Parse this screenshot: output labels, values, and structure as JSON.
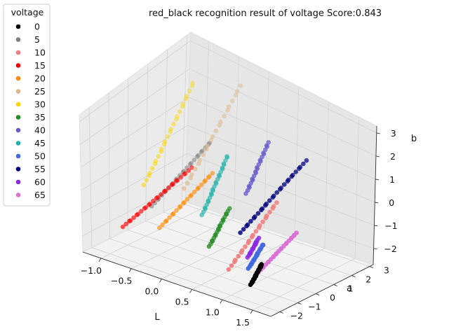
{
  "chart_data": {
    "type": "scatter",
    "projection": "3d",
    "title": "red_black recognition result of voltage Score:0.843",
    "xlabel": "L",
    "ylabel": "a",
    "zlabel": "b",
    "x_ticks": [
      "−1.0",
      "−0.5",
      "0.0",
      "0.5",
      "1.0",
      "1.5"
    ],
    "y_ticks": [
      "−2",
      "−1",
      "0",
      "1",
      "2",
      "3"
    ],
    "z_ticks": [
      "−2",
      "−1",
      "0",
      "1",
      "2",
      "3"
    ],
    "xlim": [
      -1.3,
      1.8
    ],
    "ylim": [
      -2.5,
      3.2
    ],
    "zlim": [
      -2.7,
      3.3
    ],
    "grid": true,
    "legend": {
      "title": "voltage",
      "placement": "upper-left outside",
      "entries": [
        "0",
        "5",
        "10",
        "15",
        "20",
        "25",
        "30",
        "35",
        "40",
        "45",
        "50",
        "55",
        "60",
        "65"
      ]
    },
    "series": [
      {
        "name": "0",
        "color": "#000000",
        "start": [
          1.2,
          -1.55,
          -2.2
        ],
        "end": [
          1.28,
          -1.25,
          -1.4
        ],
        "n": 24
      },
      {
        "name": "5",
        "color": "#808080",
        "start": [
          -0.95,
          0.2,
          -1.5
        ],
        "end": [
          -0.5,
          1.8,
          0.7
        ],
        "n": 26
      },
      {
        "name": "10",
        "color": "#f08080",
        "start": [
          0.78,
          -1.35,
          -2.0
        ],
        "end": [
          1.02,
          0.4,
          0.3
        ],
        "n": 22
      },
      {
        "name": "15",
        "color": "#ff0000",
        "start": [
          -1.08,
          -0.95,
          -2.0
        ],
        "end": [
          -0.55,
          0.95,
          0.0
        ],
        "n": 28
      },
      {
        "name": "20",
        "color": "#ff8c00",
        "start": [
          -0.7,
          -0.2,
          -2.0
        ],
        "end": [
          -0.3,
          1.3,
          -0.1
        ],
        "n": 24
      },
      {
        "name": "25",
        "color": "#deb887",
        "start": [
          -0.45,
          0.3,
          -0.4
        ],
        "end": [
          -0.4,
          3.0,
          2.4
        ],
        "n": 22
      },
      {
        "name": "30",
        "color": "#ffd700",
        "start": [
          -1.05,
          0.1,
          -0.7
        ],
        "end": [
          -0.95,
          2.3,
          2.3
        ],
        "n": 26
      },
      {
        "name": "35",
        "color": "#228b22",
        "start": [
          0.1,
          -0.15,
          -2.1
        ],
        "end": [
          0.15,
          0.7,
          -0.9
        ],
        "n": 20
      },
      {
        "name": "40",
        "color": "#6a5acd",
        "start": [
          0.55,
          0.35,
          0.3
        ],
        "end": [
          0.6,
          1.3,
          2.0
        ],
        "n": 22
      },
      {
        "name": "45",
        "color": "#20b2aa",
        "start": [
          -0.2,
          0.45,
          -1.3
        ],
        "end": [
          -0.15,
          1.6,
          0.6
        ],
        "n": 26
      },
      {
        "name": "50",
        "color": "#4169e1",
        "start": [
          1.0,
          -1.0,
          -1.9
        ],
        "end": [
          1.05,
          -0.4,
          -1.1
        ],
        "n": 18
      },
      {
        "name": "55",
        "color": "#000080",
        "start": [
          0.6,
          -0.1,
          -1.1
        ],
        "end": [
          0.98,
          2.1,
          1.3
        ],
        "n": 28
      },
      {
        "name": "60",
        "color": "#8a2be2",
        "start": [
          0.78,
          -0.3,
          -1.9
        ],
        "end": [
          0.85,
          0.0,
          -1.2
        ],
        "n": 14
      },
      {
        "name": "65",
        "color": "#da70d6",
        "start": [
          1.08,
          -0.7,
          -2.1
        ],
        "end": [
          1.42,
          0.2,
          -0.5
        ],
        "n": 24
      }
    ]
  }
}
